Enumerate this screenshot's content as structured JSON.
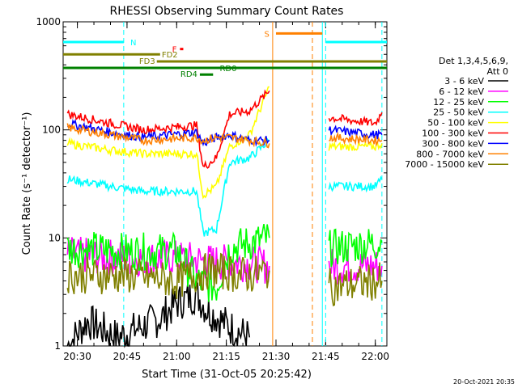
{
  "chart_data": {
    "type": "line",
    "title": "RHESSI Observing Summary Count Rates",
    "xlabel": "Start Time (31-Oct-05 20:25:42)",
    "ylabel": "Count Rate (s⁻¹ detector⁻¹)",
    "y_scale": "log",
    "ylim": [
      1,
      1000
    ],
    "xlim": [
      "20:25:42",
      "22:03:30"
    ],
    "x_ticks": [
      "20:30",
      "20:45",
      "21:00",
      "21:15",
      "21:30",
      "21:45",
      "22:00"
    ],
    "y_ticks": [
      "1",
      "10",
      "100",
      "1000"
    ],
    "footer_date": "20-Oct-2021 20:35",
    "legend": {
      "header_line1": "Det 1,3,4,5,6,9,",
      "header_line2": "Att 0",
      "placement": "right"
    },
    "series": [
      {
        "name": "3 - 6 keV",
        "color": "#000000",
        "points": [
          [
            "20:27",
            1
          ],
          [
            "20:33",
            1.7
          ],
          [
            "20:42",
            1.2
          ],
          [
            "20:55",
            1.8
          ],
          [
            "21:00",
            2.5
          ],
          [
            "21:06",
            3.0
          ],
          [
            "21:09",
            2.2
          ],
          [
            "21:16",
            1.5
          ],
          [
            "21:22",
            1.2
          ]
        ]
      },
      {
        "name": "6 - 12 keV",
        "color": "#ff00ff",
        "points": [
          [
            "20:27",
            7.0
          ],
          [
            "20:45",
            6.5
          ],
          [
            "21:00",
            6.5
          ],
          [
            "21:10",
            6.0
          ],
          [
            "21:22",
            5.8
          ],
          [
            "21:28",
            5.5
          ],
          [
            "21:46",
            5.5
          ],
          [
            "22:02",
            5.5
          ]
        ]
      },
      {
        "name": "12 - 25 keV",
        "color": "#00ff00",
        "points": [
          [
            "20:27",
            8.0
          ],
          [
            "20:45",
            7.5
          ],
          [
            "21:00",
            7.5
          ],
          [
            "21:06",
            4.0
          ],
          [
            "21:12",
            3.5
          ],
          [
            "21:16",
            8.0
          ],
          [
            "21:28",
            10.0
          ],
          [
            "21:46",
            8.0
          ],
          [
            "22:02",
            9.0
          ]
        ]
      },
      {
        "name": "25 - 50 keV",
        "color": "#00ffff",
        "points": [
          [
            "20:27",
            35
          ],
          [
            "20:40",
            30
          ],
          [
            "20:50",
            27
          ],
          [
            "21:06",
            27
          ],
          [
            "21:08",
            11
          ],
          [
            "21:12",
            12
          ],
          [
            "21:16",
            50
          ],
          [
            "21:22",
            55
          ],
          [
            "21:28",
            80
          ],
          [
            "21:46",
            30
          ],
          [
            "22:00",
            30
          ],
          [
            "22:02",
            35
          ]
        ]
      },
      {
        "name": "50 - 100 keV",
        "color": "#ffff00",
        "points": [
          [
            "20:27",
            75
          ],
          [
            "20:40",
            65
          ],
          [
            "20:50",
            60
          ],
          [
            "21:06",
            60
          ],
          [
            "21:08",
            25
          ],
          [
            "21:12",
            30
          ],
          [
            "21:16",
            70
          ],
          [
            "21:22",
            90
          ],
          [
            "21:28",
            250
          ],
          [
            "21:46",
            70
          ],
          [
            "22:00",
            70
          ],
          [
            "22:02",
            75
          ]
        ]
      },
      {
        "name": "100 - 300 keV",
        "color": "#ff0000",
        "points": [
          [
            "20:27",
            140
          ],
          [
            "20:40",
            115
          ],
          [
            "20:50",
            100
          ],
          [
            "21:06",
            110
          ],
          [
            "21:08",
            45
          ],
          [
            "21:12",
            55
          ],
          [
            "21:16",
            140
          ],
          [
            "21:22",
            150
          ],
          [
            "21:28",
            230
          ],
          [
            "21:46",
            130
          ],
          [
            "22:00",
            115
          ],
          [
            "22:02",
            145
          ]
        ]
      },
      {
        "name": "300 - 800 keV",
        "color": "#0000ff",
        "points": [
          [
            "20:27",
            115
          ],
          [
            "20:40",
            95
          ],
          [
            "20:50",
            85
          ],
          [
            "21:06",
            95
          ],
          [
            "21:08",
            75
          ],
          [
            "21:12",
            85
          ],
          [
            "21:16",
            90
          ],
          [
            "21:22",
            80
          ],
          [
            "21:28",
            80
          ],
          [
            "21:46",
            100
          ],
          [
            "22:00",
            90
          ],
          [
            "22:02",
            90
          ]
        ]
      },
      {
        "name": "800 - 7000 keV",
        "color": "#ff8000",
        "points": [
          [
            "20:27",
            105
          ],
          [
            "20:40",
            90
          ],
          [
            "20:50",
            80
          ],
          [
            "21:06",
            85
          ],
          [
            "21:08",
            80
          ],
          [
            "21:12",
            85
          ],
          [
            "21:16",
            85
          ],
          [
            "21:22",
            80
          ],
          [
            "21:28",
            75
          ],
          [
            "21:46",
            85
          ],
          [
            "22:00",
            80
          ],
          [
            "22:02",
            80
          ]
        ]
      },
      {
        "name": "7000 - 15000 keV",
        "color": "#808000",
        "points": [
          [
            "20:27",
            4.5
          ],
          [
            "20:45",
            4.5
          ],
          [
            "21:00",
            4.0
          ],
          [
            "21:10",
            5.0
          ],
          [
            "21:22",
            4.5
          ],
          [
            "21:28",
            5.0
          ],
          [
            "21:46",
            3.5
          ],
          [
            "22:02",
            4.0
          ]
        ]
      }
    ],
    "flag_bars": [
      {
        "label": "N",
        "color": "#00ffff",
        "level": 650,
        "segments": [
          [
            "20:25:42",
            "20:44"
          ],
          [
            "21:45",
            "22:03:30"
          ]
        ]
      },
      {
        "label": "S",
        "color": "#ff8000",
        "level": 780,
        "segments": [
          [
            "21:30",
            "21:44"
          ]
        ]
      },
      {
        "label": "F",
        "color": "#ff0000",
        "level": 560,
        "segments": [
          [
            "21:01",
            "21:02"
          ]
        ]
      },
      {
        "label": "FD2",
        "color": "#808000",
        "level": 500,
        "segments": [
          [
            "20:25:42",
            "20:55"
          ]
        ]
      },
      {
        "label": "FD3",
        "color": "#808000",
        "level": 430,
        "segments": [
          [
            "20:54",
            "22:03:30"
          ]
        ]
      },
      {
        "label": "RD0",
        "color": "#008000",
        "level": 375,
        "segments": [
          [
            "20:25:42",
            "22:03:30"
          ]
        ]
      },
      {
        "label": "RD4",
        "color": "#008000",
        "level": 325,
        "segments": [
          [
            "21:07",
            "21:11"
          ]
        ]
      }
    ],
    "vertical_markers": [
      {
        "time": "20:44",
        "color": "#00ffff",
        "style": "dashed"
      },
      {
        "time": "21:29",
        "color": "#ff8000",
        "style": "solid"
      },
      {
        "time": "21:41",
        "color": "#ff8000",
        "style": "dashed"
      },
      {
        "time": "21:44",
        "color": "#00ffff",
        "style": "solid"
      },
      {
        "time": "21:45",
        "color": "#00ffff",
        "style": "dashed"
      },
      {
        "time": "22:02",
        "color": "#00ffff",
        "style": "dashed"
      }
    ]
  }
}
